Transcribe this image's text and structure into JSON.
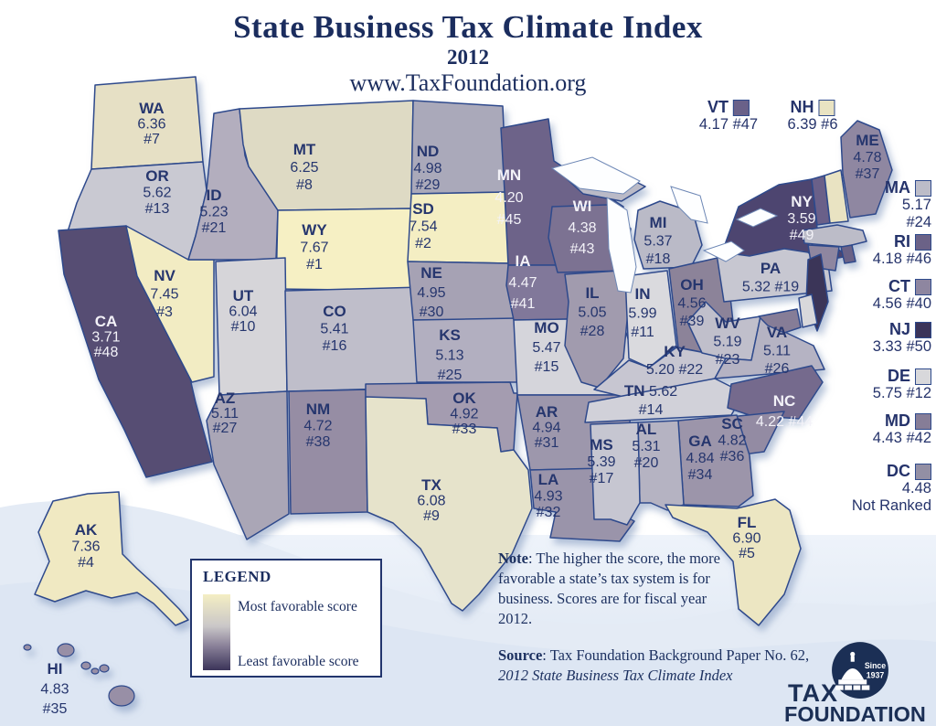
{
  "header": {
    "title": "State Business Tax Climate Index",
    "year": "2012",
    "url": "www.TaxFoundation.org"
  },
  "map": {
    "border_color": "#2e4a8c",
    "label_color": "#26366e",
    "label_color_light": "#f3f2f8",
    "states": [
      {
        "abbr": "WA",
        "score": "6.36",
        "rank": "#7",
        "color": "#e6e0c5",
        "text": "dark",
        "fmt": "3"
      },
      {
        "abbr": "OR",
        "score": "5.62",
        "rank": "#13",
        "color": "#c9c9d2",
        "text": "dark",
        "fmt": "3"
      },
      {
        "abbr": "CA",
        "score": "3.71",
        "rank": "#48",
        "color": "#574e73",
        "text": "light",
        "fmt": "3"
      },
      {
        "abbr": "NV",
        "score": "7.45",
        "rank": "#3",
        "color": "#f2ecc3",
        "text": "dark",
        "fmt": "3"
      },
      {
        "abbr": "ID",
        "score": "5.23",
        "rank": "#21",
        "color": "#b3aebe",
        "text": "dark",
        "fmt": "3"
      },
      {
        "abbr": "MT",
        "score": "6.25",
        "rank": "#8",
        "color": "#dedac4",
        "text": "dark",
        "fmt": "3"
      },
      {
        "abbr": "WY",
        "score": "7.67",
        "rank": "#1",
        "color": "#f6f0c4",
        "text": "dark",
        "fmt": "3"
      },
      {
        "abbr": "UT",
        "score": "6.04",
        "rank": "#10",
        "color": "#d6d5d9",
        "text": "dark",
        "fmt": "3"
      },
      {
        "abbr": "CO",
        "score": "5.41",
        "rank": "#16",
        "color": "#bfbeca",
        "text": "dark",
        "fmt": "3"
      },
      {
        "abbr": "AZ",
        "score": "5.11",
        "rank": "#27",
        "color": "#aaa6b6",
        "text": "dark",
        "fmt": "3"
      },
      {
        "abbr": "NM",
        "score": "4.72",
        "rank": "#38",
        "color": "#968da4",
        "text": "dark",
        "fmt": "3"
      },
      {
        "abbr": "ND",
        "score": "4.98",
        "rank": "#29",
        "color": "#aaa9ba",
        "text": "dark",
        "fmt": "3"
      },
      {
        "abbr": "SD",
        "score": "7.54",
        "rank": "#2",
        "color": "#f4eec3",
        "text": "dark",
        "fmt": "3"
      },
      {
        "abbr": "NE",
        "score": "4.95",
        "rank": "#30",
        "color": "#a6a2b4",
        "text": "dark",
        "fmt": "3"
      },
      {
        "abbr": "KS",
        "score": "5.13",
        "rank": "#25",
        "color": "#b2afc0",
        "text": "dark",
        "fmt": "3"
      },
      {
        "abbr": "OK",
        "score": "4.92",
        "rank": "#33",
        "color": "#a49cb0",
        "text": "dark",
        "fmt": "3"
      },
      {
        "abbr": "TX",
        "score": "6.08",
        "rank": "#9",
        "color": "#e6e3cb",
        "text": "dark",
        "fmt": "3"
      },
      {
        "abbr": "MN",
        "score": "4.20",
        "rank": "#45",
        "color": "#6d6489",
        "text": "light",
        "fmt": "3"
      },
      {
        "abbr": "IA",
        "score": "4.47",
        "rank": "#41",
        "color": "#81789a",
        "text": "light",
        "fmt": "3"
      },
      {
        "abbr": "MO",
        "score": "5.47",
        "rank": "#15",
        "color": "#d5d5db",
        "text": "dark",
        "fmt": "3"
      },
      {
        "abbr": "AR",
        "score": "4.94",
        "rank": "#31",
        "color": "#9d97ac",
        "text": "dark",
        "fmt": "3"
      },
      {
        "abbr": "LA",
        "score": "4.93",
        "rank": "#32",
        "color": "#9a94aa",
        "text": "dark",
        "fmt": "3"
      },
      {
        "abbr": "WI",
        "score": "4.38",
        "rank": "#43",
        "color": "#7b7292",
        "text": "light",
        "fmt": "3"
      },
      {
        "abbr": "IL",
        "score": "5.05",
        "rank": "#28",
        "color": "#a19bae",
        "text": "dark",
        "fmt": "3"
      },
      {
        "abbr": "IN",
        "score": "5.99",
        "rank": "#11",
        "color": "#dadade",
        "text": "dark",
        "fmt": "3"
      },
      {
        "abbr": "MI",
        "score": "5.37",
        "rank": "#18",
        "color": "#babac7",
        "text": "dark",
        "fmt": "3"
      },
      {
        "abbr": "OH",
        "score": "4.56",
        "rank": "#39",
        "color": "#8c8399",
        "text": "dark",
        "fmt": "3"
      },
      {
        "abbr": "KY",
        "score": "5.20",
        "rank": "#22",
        "color": "#c7c6d1",
        "text": "dark",
        "fmt": "2r"
      },
      {
        "abbr": "TN",
        "score": "5.62",
        "rank": "#14",
        "color": "#d1d1d9",
        "text": "dark",
        "fmt": "2t"
      },
      {
        "abbr": "WV",
        "score": "5.19",
        "rank": "#23",
        "color": "#c0bfcb",
        "text": "dark",
        "fmt": "3"
      },
      {
        "abbr": "VA",
        "score": "5.11",
        "rank": "#26",
        "color": "#b5b3c3",
        "text": "dark",
        "fmt": "3"
      },
      {
        "abbr": "PA",
        "score": "5.32",
        "rank": "#19",
        "color": "#c7c7d1",
        "text": "dark",
        "fmt": "2r"
      },
      {
        "abbr": "NY",
        "score": "3.59",
        "rank": "#49",
        "color": "#4d4570",
        "text": "light",
        "fmt": "3"
      },
      {
        "abbr": "NC",
        "score": "4.22",
        "rank": "#44",
        "color": "#746b8d",
        "text": "light",
        "fmt": "2r"
      },
      {
        "abbr": "SC",
        "score": "4.82",
        "rank": "#36",
        "color": "#938ba3",
        "text": "dark",
        "fmt": "3"
      },
      {
        "abbr": "GA",
        "score": "4.84",
        "rank": "#34",
        "color": "#9c95aa",
        "text": "dark",
        "fmt": "3"
      },
      {
        "abbr": "AL",
        "score": "5.31",
        "rank": "#20",
        "color": "#b5b3c2",
        "text": "dark",
        "fmt": "3"
      },
      {
        "abbr": "MS",
        "score": "5.39",
        "rank": "#17",
        "color": "#c6c6d1",
        "text": "dark",
        "fmt": "3"
      },
      {
        "abbr": "FL",
        "score": "6.90",
        "rank": "#5",
        "color": "#ece6c2",
        "text": "dark",
        "fmt": "3"
      },
      {
        "abbr": "ME",
        "score": "4.78",
        "rank": "#37",
        "color": "#8f87a1",
        "text": "dark",
        "fmt": "3"
      },
      {
        "abbr": "AK",
        "score": "7.36",
        "rank": "#4",
        "color": "#f0e9c2",
        "text": "dark",
        "fmt": "3"
      },
      {
        "abbr": "HI",
        "score": "4.83",
        "rank": "#35",
        "color": "#988fa6",
        "text": "dark",
        "fmt": "3"
      },
      {
        "abbr": "VT",
        "score": "4.17",
        "rank": "#47",
        "color": "#6a6189",
        "text": "dark",
        "fmt": "none"
      },
      {
        "abbr": "NH",
        "score": "6.39",
        "rank": "#6",
        "color": "#e9e3c2",
        "text": "dark",
        "fmt": "none"
      },
      {
        "abbr": "MA",
        "score": "5.17",
        "rank": "#24",
        "color": "#bcbcc8",
        "text": "dark",
        "fmt": "none"
      },
      {
        "abbr": "RI",
        "score": "4.18",
        "rank": "#46",
        "color": "#6b6287",
        "text": "dark",
        "fmt": "none"
      },
      {
        "abbr": "CT",
        "score": "4.56",
        "rank": "#40",
        "color": "#8e86a0",
        "text": "dark",
        "fmt": "none"
      },
      {
        "abbr": "NJ",
        "score": "3.33",
        "rank": "#50",
        "color": "#3b3459",
        "text": "dark",
        "fmt": "none"
      },
      {
        "abbr": "DE",
        "score": "5.75",
        "rank": "#12",
        "color": "#d8d8db",
        "text": "dark",
        "fmt": "none"
      },
      {
        "abbr": "MD",
        "score": "4.43",
        "rank": "#42",
        "color": "#867d97",
        "text": "dark",
        "fmt": "none"
      },
      {
        "abbr": "DC",
        "score": "4.48",
        "rank": "Not Ranked",
        "color": "#938fa4",
        "text": "dark",
        "fmt": "none"
      }
    ]
  },
  "callouts": {
    "top": [
      {
        "abbr": "VT",
        "lines": [
          "4.17 #47"
        ],
        "color": "#6a6189"
      },
      {
        "abbr": "NH",
        "lines": [
          "6.39 #6"
        ],
        "color": "#e9e3c2"
      }
    ],
    "right": [
      {
        "abbr": "MA",
        "lines": [
          "5.17",
          "#24"
        ],
        "color": "#bcbcc8"
      },
      {
        "abbr": "RI",
        "lines": [
          "4.18 #46"
        ],
        "color": "#6b6287"
      },
      {
        "abbr": "CT",
        "lines": [
          "4.56 #40"
        ],
        "color": "#8e86a0"
      },
      {
        "abbr": "NJ",
        "lines": [
          "3.33 #50"
        ],
        "color": "#3b3459"
      },
      {
        "abbr": "DE",
        "lines": [
          "5.75 #12"
        ],
        "color": "#d8d8db"
      },
      {
        "abbr": "MD",
        "lines": [
          "4.43 #42"
        ],
        "color": "#867d97"
      },
      {
        "abbr": "DC",
        "lines": [
          "4.48",
          "Not Ranked"
        ],
        "color": "#938fa4"
      }
    ]
  },
  "legend": {
    "title": "LEGEND",
    "top_label": "Most favorable score",
    "bottom_label": "Least favorable score",
    "top_color": "#f4eec3",
    "bottom_color": "#3b3459"
  },
  "note": {
    "label": "Note",
    "text": ": The higher the score, the more favorable a state’s tax system is for business. Scores are for fiscal year 2012."
  },
  "source": {
    "label": "Source",
    "text": ": Tax Foundation Background Paper No. 62, ",
    "italic": "2012 State Business Tax Climate Index"
  },
  "logo": {
    "line1": "TAX",
    "line2": "FOUNDATION",
    "since_line1": "Since",
    "since_line2": "1937"
  }
}
